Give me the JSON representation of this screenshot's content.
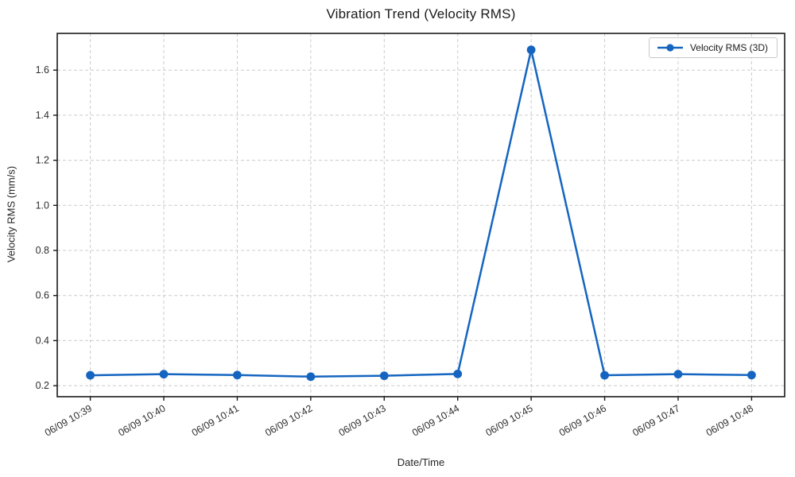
{
  "chart_data": {
    "type": "line",
    "title": "Vibration Trend (Velocity RMS)",
    "xlabel": "Date/Time",
    "ylabel": "Velocity RMS (mm/s)",
    "categories": [
      "06/09 10:39",
      "06/09 10:40",
      "06/09 10:41",
      "06/09 10:42",
      "06/09 10:43",
      "06/09 10:44",
      "06/09 10:45",
      "06/09 10:46",
      "06/09 10:47",
      "06/09 10:48"
    ],
    "series": [
      {
        "name": "Velocity RMS (3D)",
        "values": [
          0.246,
          0.251,
          0.247,
          0.24,
          0.244,
          0.252,
          1.69,
          0.246,
          0.251,
          0.247
        ],
        "color": "#1565C0",
        "marker": "circle"
      }
    ],
    "yticks": [
      0.2,
      0.4,
      0.6,
      0.8,
      1.0,
      1.2,
      1.4,
      1.6
    ],
    "ylim": [
      0.151,
      1.763
    ],
    "x_margin": 0.45,
    "grid": true,
    "grid_style": "dashed",
    "legend_position": "upper right",
    "x_tick_rotation_deg": 30
  },
  "colors": {
    "line": "#1565C0",
    "grid": "#cccccc",
    "spine": "#1a1a1a",
    "tick_text": "#2e2e2e",
    "background": "#ffffff"
  }
}
